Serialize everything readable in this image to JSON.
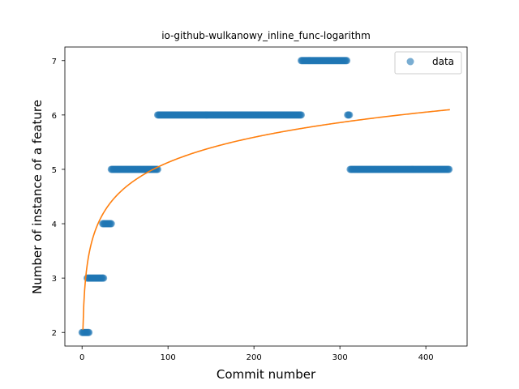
{
  "chart_data": {
    "type": "scatter",
    "title": "io-github-wulkanowy_inline_func-logarithm",
    "xlabel": "Commit number",
    "ylabel": "Number of instance of a feature",
    "xlim": [
      -20,
      448
    ],
    "ylim": [
      1.75,
      7.25
    ],
    "xticks": [
      0,
      100,
      200,
      300,
      400
    ],
    "yticks": [
      2,
      3,
      4,
      5,
      6,
      7
    ],
    "legend": {
      "position": "top-right",
      "entries": [
        "data"
      ]
    },
    "grid": false,
    "series": [
      {
        "name": "data",
        "kind": "scatter",
        "color": "#1f77b4",
        "points": [
          {
            "x_from": 0,
            "x_to": 8,
            "y": 2
          },
          {
            "x_from": 6,
            "x_to": 25,
            "y": 3
          },
          {
            "x_from": 24,
            "x_to": 34,
            "y": 4
          },
          {
            "x_from": 34,
            "x_to": 88,
            "y": 5
          },
          {
            "x_from": 88,
            "x_to": 255,
            "y": 6
          },
          {
            "x_from": 255,
            "x_to": 308,
            "y": 7
          },
          {
            "x_from": 309,
            "x_to": 311,
            "y": 6
          },
          {
            "x_from": 312,
            "x_to": 427,
            "y": 5
          }
        ]
      },
      {
        "name": "",
        "kind": "line",
        "color": "#ff7f0e",
        "function": "logarithmic fit",
        "coefficients": {
          "a": 2.05,
          "b": 0.668
        }
      }
    ]
  }
}
